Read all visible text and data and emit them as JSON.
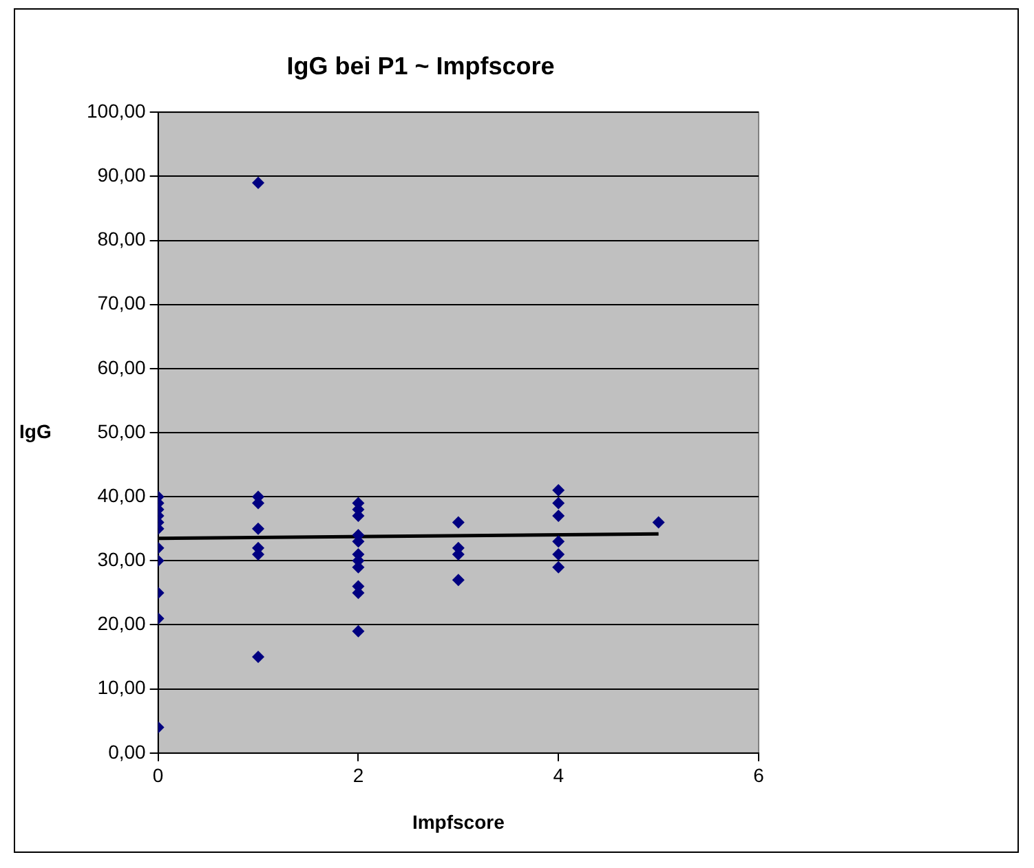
{
  "chart_data": {
    "type": "scatter",
    "title": "IgG bei P1 ~ Impfscore",
    "xlabel": "Impfscore",
    "ylabel": "IgG",
    "xlim": [
      0,
      6
    ],
    "xticks": [
      0,
      2,
      4,
      6
    ],
    "ylim": [
      0,
      100
    ],
    "yticks": [
      {
        "value": 0,
        "label": "0,00"
      },
      {
        "value": 10,
        "label": "10,00"
      },
      {
        "value": 20,
        "label": "20,00"
      },
      {
        "value": 30,
        "label": "30,00"
      },
      {
        "value": 40,
        "label": "40,00"
      },
      {
        "value": 50,
        "label": "50,00"
      },
      {
        "value": 60,
        "label": "60,00"
      },
      {
        "value": 70,
        "label": "70,00"
      },
      {
        "value": 80,
        "label": "80,00"
      },
      {
        "value": 90,
        "label": "90,00"
      },
      {
        "value": 100,
        "label": "100,00"
      }
    ],
    "grid": "y",
    "legend": false,
    "marker": "diamond",
    "series": [
      {
        "color": "#000080",
        "x": [
          0,
          0,
          0,
          0,
          0,
          0,
          0,
          0,
          0,
          0,
          0,
          1,
          1,
          1,
          1,
          1,
          1,
          1,
          2,
          2,
          2,
          2,
          2,
          2,
          2,
          2,
          2,
          2,
          2,
          3,
          3,
          3,
          3,
          4,
          4,
          4,
          4,
          4,
          4,
          5
        ],
        "values": [
          40,
          39,
          38,
          37,
          36,
          35,
          32,
          30,
          25,
          21,
          4,
          89,
          40,
          39,
          35,
          32,
          31,
          15,
          39,
          38,
          37,
          34,
          33,
          31,
          30,
          29,
          26,
          25,
          19,
          36,
          32,
          31,
          27,
          41,
          39,
          37,
          33,
          31,
          29,
          36
        ]
      },
      {
        "type": "line",
        "color": "#000000",
        "x": [
          0,
          5
        ],
        "values": [
          33.5,
          34.2
        ],
        "marker": "none"
      }
    ]
  }
}
